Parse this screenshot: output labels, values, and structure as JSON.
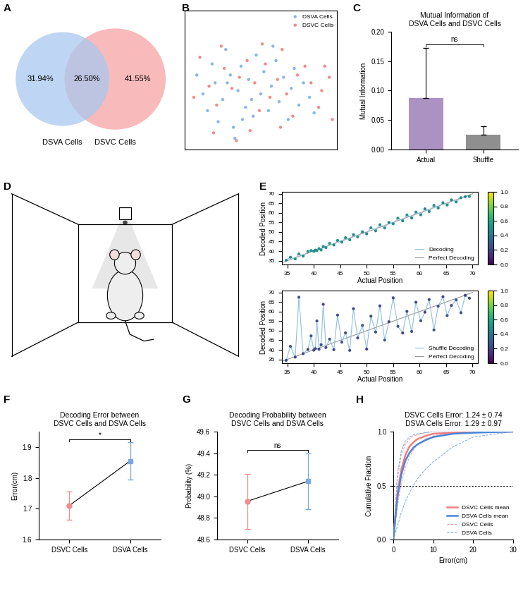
{
  "chart_data": [
    {
      "panel_label": "A",
      "type": "venn",
      "series": [
        {
          "name": "DSVA Cells",
          "color": "#a8c8ef"
        },
        {
          "name": "DSVC Cells",
          "color": "#f6a3a3"
        }
      ],
      "values": [
        31.94,
        26.5,
        41.55
      ],
      "value_labels": [
        "31.94%",
        "26.50%",
        "41.55%"
      ],
      "data_labels": true
    },
    {
      "panel_label": "B",
      "type": "scatter",
      "series": [
        {
          "name": "DSVA Cells",
          "color": "#8ab6e8",
          "x": [
            0.08,
            0.12,
            0.15,
            0.18,
            0.2,
            0.22,
            0.25,
            0.27,
            0.3,
            0.32,
            0.35,
            0.37,
            0.4,
            0.42,
            0.45,
            0.47,
            0.5,
            0.52,
            0.55,
            0.57,
            0.6,
            0.62,
            0.65,
            0.68,
            0.7,
            0.72,
            0.75,
            0.78,
            0.82,
            0.85,
            0.33,
            0.28,
            0.44,
            0.58,
            0.38
          ],
          "values": [
            0.62,
            0.45,
            0.3,
            0.72,
            0.55,
            0.2,
            0.4,
            0.85,
            0.62,
            0.15,
            0.48,
            0.7,
            0.33,
            0.58,
            0.25,
            0.8,
            0.45,
            0.65,
            0.3,
            0.52,
            0.75,
            0.38,
            0.6,
            0.22,
            0.5,
            0.68,
            0.35,
            0.55,
            0.42,
            0.28,
            0.05,
            0.55,
            0.4,
            0.88,
            0.22
          ]
        },
        {
          "name": "DSVC Cells",
          "color": "#f08c8c",
          "x": [
            0.06,
            0.1,
            0.16,
            0.21,
            0.26,
            0.31,
            0.36,
            0.41,
            0.46,
            0.49,
            0.53,
            0.56,
            0.61,
            0.64,
            0.67,
            0.71,
            0.74,
            0.79,
            0.83,
            0.88,
            0.92,
            0.95,
            0.97,
            0.9,
            0.43,
            0.24,
            0.34,
            0.63,
            0.51,
            0.19
          ],
          "values": [
            0.42,
            0.78,
            0.52,
            0.35,
            0.68,
            0.5,
            0.6,
            0.75,
            0.55,
            0.3,
            0.72,
            0.42,
            0.58,
            0.85,
            0.45,
            0.25,
            0.62,
            0.7,
            0.55,
            0.33,
            0.7,
            0.6,
            0.22,
            0.48,
            0.12,
            0.88,
            0.03,
            0.15,
            0.9,
            0.1
          ]
        }
      ],
      "xlim": [
        0,
        1
      ],
      "ylim": [
        -0.05,
        1.2
      ],
      "tick_labels": false,
      "legend": "upper right"
    },
    {
      "panel_label": "C",
      "type": "bar",
      "title": "Mutual Information of\nDSVA Cells and DSVC Cells",
      "categories": [
        "Actual",
        "Shuffle"
      ],
      "values": [
        0.088,
        0.025
      ],
      "errors": [
        0.085,
        0.015
      ],
      "colors": [
        "#ab92c2",
        "#8f8f8f"
      ],
      "ylabel": "Mutual Information",
      "ylim": [
        0,
        0.2
      ],
      "yticks": [
        {
          "value": 0,
          "label": "0.00"
        },
        {
          "value": 0.05,
          "label": "0.05"
        },
        {
          "value": 0.1,
          "label": "0.10"
        },
        {
          "value": 0.15,
          "label": "0.15"
        },
        {
          "value": 0.2,
          "label": "0.20"
        }
      ],
      "annotations": [
        {
          "text": "ns"
        }
      ]
    },
    {
      "panel_label": "D",
      "type": "diagram"
    },
    {
      "panel_label": "E",
      "type": "line",
      "xlabel": "Actual Position",
      "ylabel": "Decoded Position",
      "series": [
        {
          "name": "Decoding",
          "color": "#8fbfe0",
          "marker": "o",
          "x": [
            34.8,
            35.6,
            36.5,
            37.2,
            38.0,
            38.9,
            39.5,
            40.0,
            40.3,
            40.6,
            41.0,
            41.4,
            41.8,
            42.3,
            43.0,
            43.8,
            44.5,
            45.3,
            46.0,
            46.8,
            47.5,
            48.3,
            49.2,
            50.0,
            50.8,
            51.7,
            52.5,
            53.4,
            54.2,
            55.0,
            55.9,
            56.8,
            57.6,
            58.5,
            59.3,
            60.2,
            61.0,
            61.8,
            62.7,
            63.5,
            64.4,
            65.2,
            66.0,
            66.9,
            67.8,
            68.6,
            69.4
          ],
          "values": [
            35.2,
            36.8,
            35.9,
            38.5,
            37.4,
            39.8,
            40.3,
            39.9,
            40.5,
            40.2,
            41.3,
            40.6,
            42.4,
            41.8,
            44.1,
            43.2,
            45.6,
            44.7,
            47.0,
            45.9,
            48.6,
            47.4,
            50.1,
            49.0,
            52.2,
            50.6,
            53.8,
            52.1,
            55.0,
            54.3,
            57.2,
            55.8,
            58.9,
            57.3,
            60.4,
            59.0,
            62.1,
            60.7,
            63.9,
            62.5,
            65.3,
            64.1,
            66.8,
            65.7,
            67.9,
            68.4,
            68.6
          ],
          "probabilities": [
            0.5,
            0.48,
            0.52,
            0.49,
            0.47,
            0.51,
            0.53,
            0.5,
            0.46,
            0.52,
            0.49,
            0.51,
            0.48,
            0.5,
            0.54,
            0.47,
            0.52,
            0.49,
            0.51,
            0.5,
            0.48,
            0.53,
            0.5,
            0.47,
            0.52,
            0.49,
            0.51,
            0.5,
            0.48,
            0.52,
            0.5,
            0.49,
            0.53,
            0.47,
            0.51,
            0.5,
            0.48,
            0.52,
            0.49,
            0.51,
            0.5,
            0.53,
            0.48,
            0.52,
            0.5,
            0.49,
            0.51
          ]
        },
        {
          "name": "Perfect Decoding",
          "color": "#999999",
          "x": [
            34,
            70
          ],
          "values": [
            34,
            70
          ]
        }
      ],
      "xlim": [
        34,
        71
      ],
      "ylim": [
        33,
        71
      ],
      "xticks": [
        35,
        40,
        45,
        50,
        55,
        60,
        65,
        70
      ],
      "yticks": [
        35,
        40,
        45,
        50,
        55,
        60,
        65,
        70
      ],
      "legend": "lower right",
      "colorbar": {
        "range": [
          0,
          1
        ],
        "ticks": [
          0.0,
          0.2,
          0.4,
          0.6,
          0.8,
          1.0
        ]
      }
    },
    {
      "type": "line",
      "xlabel": "Actual Position",
      "ylabel": "Decoded Position",
      "series": [
        {
          "name": "Shuffle Decoding",
          "color": "#8fbfe0",
          "marker": "o",
          "x": [
            34.8,
            35.6,
            36.5,
            37.2,
            38.0,
            38.9,
            39.5,
            40.0,
            40.3,
            40.6,
            41.0,
            41.4,
            41.8,
            42.3,
            43.0,
            43.8,
            44.5,
            45.3,
            46.0,
            46.8,
            47.5,
            48.3,
            49.2,
            50.0,
            50.8,
            51.7,
            52.5,
            53.4,
            54.2,
            55.0,
            55.9,
            56.8,
            57.6,
            58.5,
            59.3,
            60.2,
            61.0,
            61.8,
            62.7,
            63.5,
            64.4,
            65.2,
            66.0,
            66.9,
            67.8,
            68.6,
            69.4
          ],
          "values": [
            34.5,
            41.8,
            36.2,
            67.5,
            38.0,
            40.2,
            47.3,
            39.8,
            40.6,
            55.1,
            40.3,
            42.7,
            63.8,
            41.2,
            45.6,
            40.1,
            58.2,
            44.0,
            48.9,
            39.7,
            61.5,
            46.2,
            52.8,
            40.4,
            57.6,
            49.3,
            63.0,
            45.1,
            54.7,
            67.2,
            52.3,
            48.8,
            60.1,
            49.6,
            64.9,
            55.2,
            59.7,
            66.3,
            50.4,
            62.8,
            67.8,
            57.9,
            63.2,
            66.1,
            59.4,
            68.5,
            67.0
          ],
          "probabilities": [
            0.22,
            0.25,
            0.2,
            0.27,
            0.23,
            0.21,
            0.26,
            0.24,
            0.19,
            0.25,
            0.22,
            0.28,
            0.21,
            0.24,
            0.26,
            0.2,
            0.23,
            0.25,
            0.22,
            0.27,
            0.21,
            0.24,
            0.26,
            0.19,
            0.23,
            0.25,
            0.22,
            0.28,
            0.2,
            0.24,
            0.26,
            0.21,
            0.23,
            0.25,
            0.22,
            0.27,
            0.2,
            0.24,
            0.26,
            0.23,
            0.21,
            0.25,
            0.22,
            0.28,
            0.24,
            0.2,
            0.23
          ]
        },
        {
          "name": "Perfect Decoding",
          "color": "#999999",
          "x": [
            34,
            70
          ],
          "values": [
            34,
            70
          ]
        }
      ],
      "xlim": [
        34,
        71
      ],
      "ylim": [
        33,
        71
      ],
      "xticks": [
        35,
        40,
        45,
        50,
        55,
        60,
        65,
        70
      ],
      "yticks": [
        35,
        40,
        45,
        50,
        55,
        60,
        65,
        70
      ],
      "legend": "lower right",
      "colorbar": {
        "range": [
          0,
          1
        ],
        "ticks": [
          0.0,
          0.2,
          0.4,
          0.6,
          0.8,
          1.0
        ]
      }
    },
    {
      "panel_label": "F",
      "type": "point",
      "title": "Decoding Error between\nDSVC Cells and DSVA Cells",
      "categories": [
        "DSVC Cells",
        "DSVA Cells"
      ],
      "values": [
        1.71,
        1.855
      ],
      "errors": [
        0.045,
        0.06
      ],
      "colors": [
        "#f08c8c",
        "#7aa8e0"
      ],
      "ylabel": "Error(cm)",
      "ylim": [
        1.6,
        1.95
      ],
      "yticks": [
        1.6,
        1.7,
        1.8,
        1.9
      ],
      "annotations": [
        {
          "text": "*"
        }
      ]
    },
    {
      "panel_label": "G",
      "type": "point",
      "title": "Decoding Probability between\nDSVC Cells and DSVA Cells",
      "categories": [
        "DSVC Cells",
        "DSVA Cells"
      ],
      "values": [
        48.955,
        49.14
      ],
      "errors": [
        0.255,
        0.26
      ],
      "colors": [
        "#f08c8c",
        "#7aa8e0"
      ],
      "ylabel": "Probability (%)",
      "ylim": [
        48.6,
        49.6
      ],
      "yticks": [
        48.6,
        48.8,
        49.0,
        49.2,
        49.4,
        49.6
      ],
      "annotations": [
        {
          "text": "ns"
        }
      ]
    },
    {
      "panel_label": "H",
      "type": "line",
      "title": "DSVC Cells Error: 1.24 ± 0.74\nDSVA Cells Error: 1.29 ± 0.97",
      "xlabel": "Error(cm)",
      "ylabel": "Cumulative Fraction",
      "hline": 0.5,
      "series": [
        {
          "name": "DSVC Cells mean",
          "color": "#f07f7f",
          "line_style": "solid",
          "x": [
            0,
            1,
            2,
            3,
            4,
            5,
            6,
            8,
            10,
            15,
            20,
            30
          ],
          "values": [
            0,
            0.42,
            0.65,
            0.78,
            0.86,
            0.9,
            0.93,
            0.96,
            0.98,
            0.99,
            1.0,
            1.0
          ]
        },
        {
          "name": "DSVA Cells mean",
          "color": "#4a86d8",
          "line_style": "solid",
          "x": [
            0,
            1,
            2,
            3,
            4,
            5,
            6,
            8,
            10,
            15,
            20,
            30
          ],
          "values": [
            0,
            0.38,
            0.6,
            0.73,
            0.8,
            0.85,
            0.88,
            0.92,
            0.95,
            0.98,
            0.99,
            1.0
          ]
        },
        {
          "name": "DSVC Cells",
          "color": "#f4a0a0",
          "line_style": "dashed",
          "x": [
            0,
            1,
            2,
            3,
            4,
            5,
            6,
            8,
            10,
            15,
            20,
            30
          ],
          "values": [
            [
              0,
              0.55,
              0.78,
              0.88,
              0.93,
              0.96,
              0.97,
              0.99,
              1.0,
              1.0,
              1.0,
              1.0
            ],
            [
              0,
              0.3,
              0.52,
              0.66,
              0.76,
              0.83,
              0.88,
              0.93,
              0.96,
              0.99,
              1.0,
              1.0
            ]
          ]
        },
        {
          "name": "DSVA Cells",
          "color": "#7aa8e0",
          "line_style": "dashed",
          "x": [
            0,
            1,
            2,
            3,
            4,
            5,
            6,
            8,
            10,
            15,
            20,
            30
          ],
          "values": [
            [
              0,
              0.6,
              0.82,
              0.91,
              0.95,
              0.97,
              0.98,
              0.99,
              1.0,
              1.0,
              1.0,
              1.0
            ],
            [
              0,
              0.12,
              0.25,
              0.35,
              0.43,
              0.5,
              0.56,
              0.65,
              0.72,
              0.86,
              0.95,
              1.0
            ]
          ]
        }
      ],
      "xlim": [
        0,
        30
      ],
      "ylim": [
        0,
        1.0
      ],
      "xticks": [
        0,
        10,
        20,
        30
      ],
      "yticks": [
        0.0,
        0.5,
        1.0
      ],
      "legend": "lower right"
    }
  ]
}
